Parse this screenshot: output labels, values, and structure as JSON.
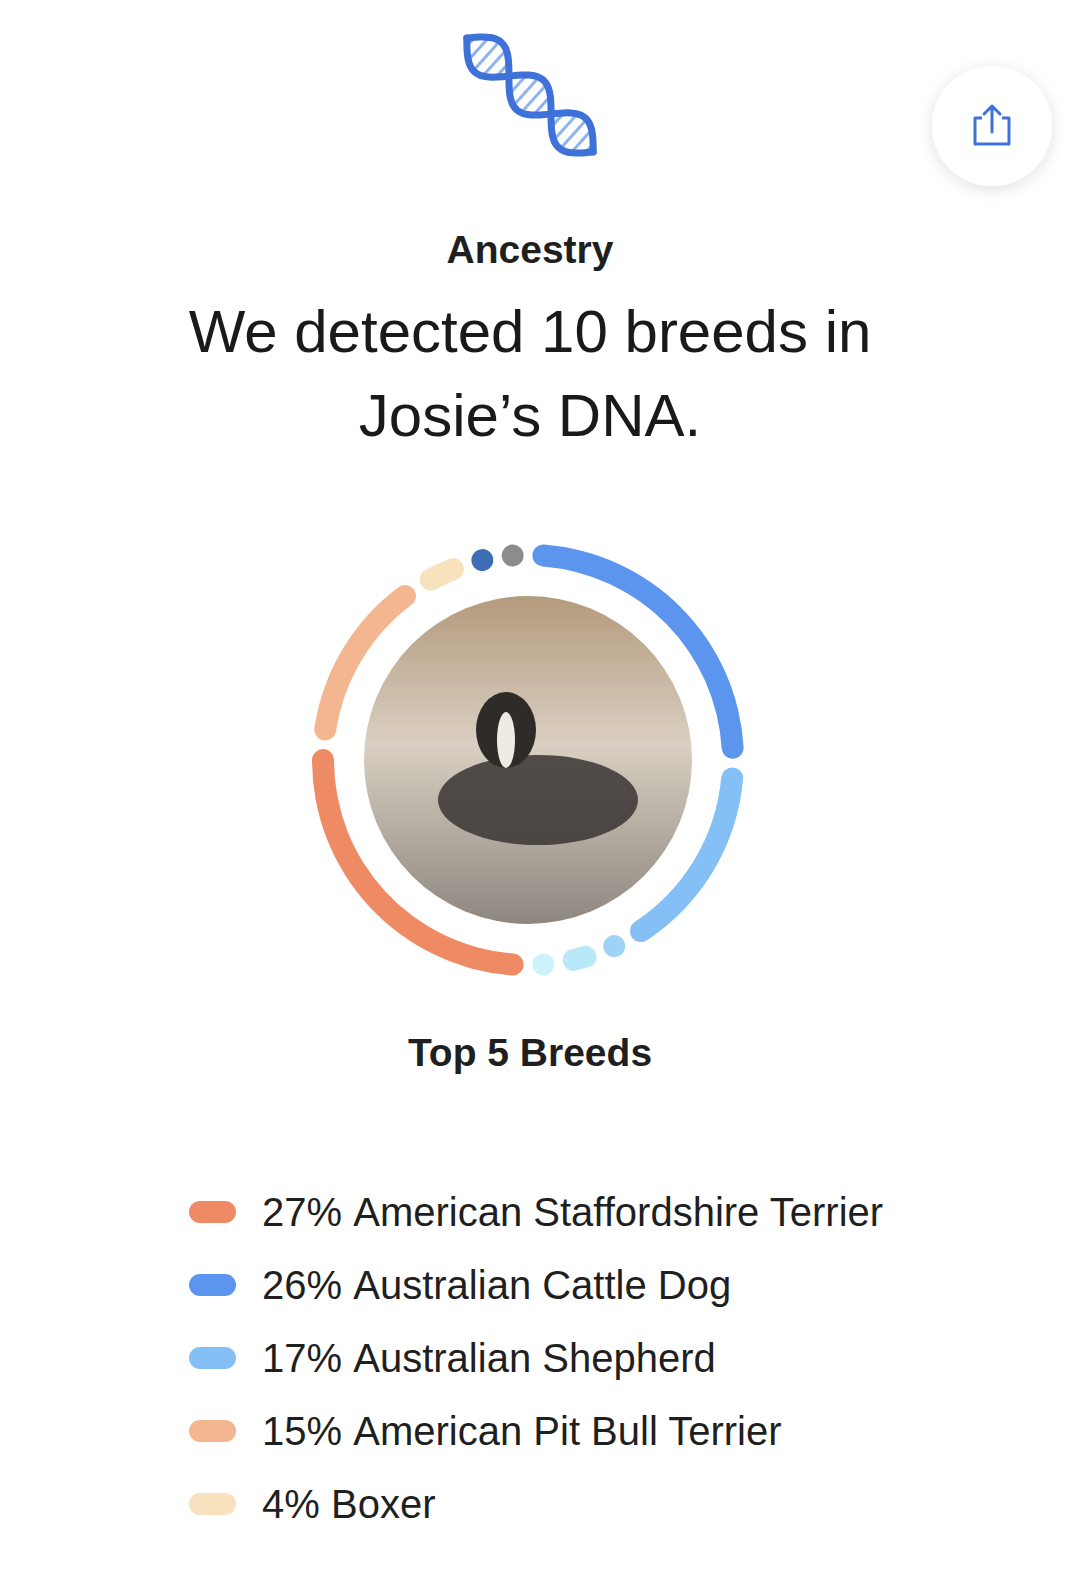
{
  "header": {
    "section": "Ancestry",
    "heading": [
      "We detected 10 breeds in",
      "Josie’s DNA."
    ]
  },
  "chart_data": {
    "type": "donut",
    "title": "Top 5 Breeds",
    "categories": [
      "American Staffordshire Terrier",
      "Australian Cattle Dog",
      "Australian Shepherd",
      "American Pit Bull Terrier",
      "Boxer",
      null,
      null,
      null,
      null,
      null
    ],
    "values": [
      27,
      26,
      17,
      15,
      4,
      2,
      3,
      2,
      2,
      2
    ],
    "value_labels": [
      "27%",
      "26%",
      "17%",
      "15%",
      "4%",
      null,
      null,
      null,
      null,
      null
    ],
    "colors": [
      "#ee8b64",
      "#5c95ee",
      "#84bff6",
      "#f4b690",
      "#f8e2bd",
      "#9fd3f6",
      "#b9e9f8",
      "#cdf3fa",
      "#3f6db4",
      "#8c8c8c"
    ]
  }
}
